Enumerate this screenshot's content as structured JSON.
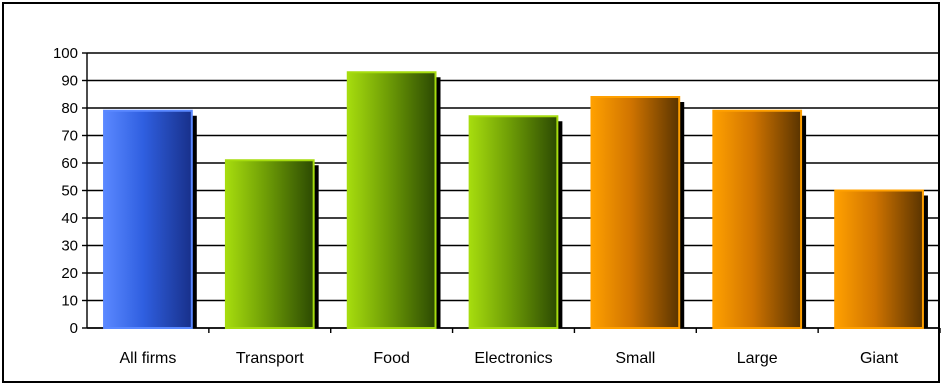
{
  "chart_data": {
    "type": "bar",
    "categories": [
      "All firms",
      "Transport",
      "Food",
      "Electronics",
      "Small",
      "Large",
      "Giant"
    ],
    "values": [
      79,
      61,
      93,
      77,
      84,
      79,
      50
    ],
    "bar_groups": [
      "blue",
      "green",
      "green",
      "green",
      "orange",
      "orange",
      "orange"
    ],
    "ylim": [
      0,
      100
    ],
    "yticks": [
      0,
      10,
      20,
      30,
      40,
      50,
      60,
      70,
      80,
      90,
      100
    ],
    "grid": true,
    "legend": "none"
  },
  "colors": {
    "blue": {
      "light": "#5a88ff",
      "mid": "#2f5fe0",
      "dark": "#18308a"
    },
    "green": {
      "light": "#a6dc0e",
      "mid": "#6f9e06",
      "dark": "#2c4a02"
    },
    "orange": {
      "light": "#ffa000",
      "mid": "#d07400",
      "dark": "#5a3400"
    }
  }
}
